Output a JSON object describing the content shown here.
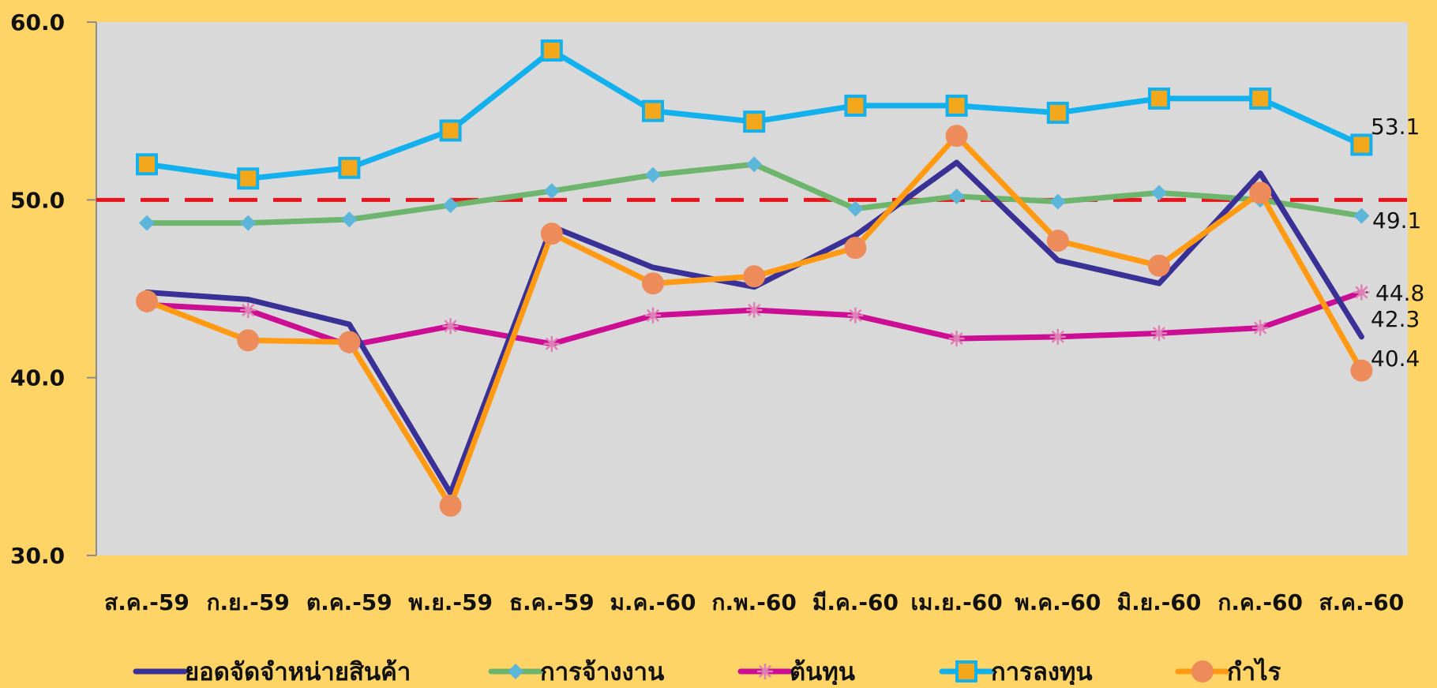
{
  "chart_data": {
    "type": "line",
    "categories": [
      "ส.ค.-59",
      "ก.ย.-59",
      "ต.ค.-59",
      "พ.ย.-59",
      "ธ.ค.-59",
      "ม.ค.-60",
      "ก.พ.-60",
      "มี.ค.-60",
      "เม.ย.-60",
      "พ.ค.-60",
      "มิ.ย.-60",
      "ก.ค.-60",
      "ส.ค.-60"
    ],
    "ylim": [
      30,
      60
    ],
    "yticks": [
      30,
      40,
      50,
      60
    ],
    "ytick_labels": [
      "30.0",
      "40.0",
      "50.0",
      "60.0"
    ],
    "reference_line": {
      "value": 50,
      "color": "#E8131B",
      "style": "dashed"
    },
    "plot_background": "#D9D9D9",
    "page_background": "#FFD466",
    "legend_position": "bottom",
    "series": [
      {
        "name": "ยอดจัดจำหน่ายสินค้า",
        "color": "#3A3196",
        "marker": "none",
        "values": [
          44.8,
          44.4,
          43.0,
          33.5,
          48.5,
          46.2,
          45.1,
          48.0,
          52.1,
          46.6,
          45.3,
          51.5,
          42.3
        ],
        "end_label": "42.3"
      },
      {
        "name": "การจ้างงาน",
        "color": "#6DB56D",
        "marker": "diamond",
        "marker_color": "#5BB6D9",
        "values": [
          48.7,
          48.7,
          48.9,
          49.7,
          50.5,
          51.4,
          52.0,
          49.5,
          50.2,
          49.9,
          50.4,
          50.0,
          49.1
        ],
        "end_label": "49.1"
      },
      {
        "name": "ต้นทุน",
        "color": "#CC0E94",
        "marker": "star",
        "marker_color": "#E07FB5",
        "values": [
          44.1,
          43.8,
          41.8,
          42.9,
          41.9,
          43.5,
          43.8,
          43.5,
          42.2,
          42.3,
          42.5,
          42.8,
          44.8
        ],
        "end_label": "44.8"
      },
      {
        "name": "การลงทุน",
        "color": "#12B0EC",
        "marker": "square",
        "marker_color": "#F2A81A",
        "values": [
          52.0,
          51.2,
          51.8,
          53.9,
          58.4,
          55.0,
          54.4,
          55.3,
          55.3,
          54.9,
          55.7,
          55.7,
          53.1
        ],
        "end_label": "53.1"
      },
      {
        "name": "กำไร",
        "color": "#FF9A12",
        "marker": "circle",
        "marker_color": "#EE8B5B",
        "values": [
          44.3,
          42.1,
          42.0,
          32.8,
          48.1,
          45.3,
          45.7,
          47.3,
          53.6,
          47.7,
          46.3,
          50.4,
          40.4
        ],
        "end_label": "40.4"
      }
    ]
  }
}
